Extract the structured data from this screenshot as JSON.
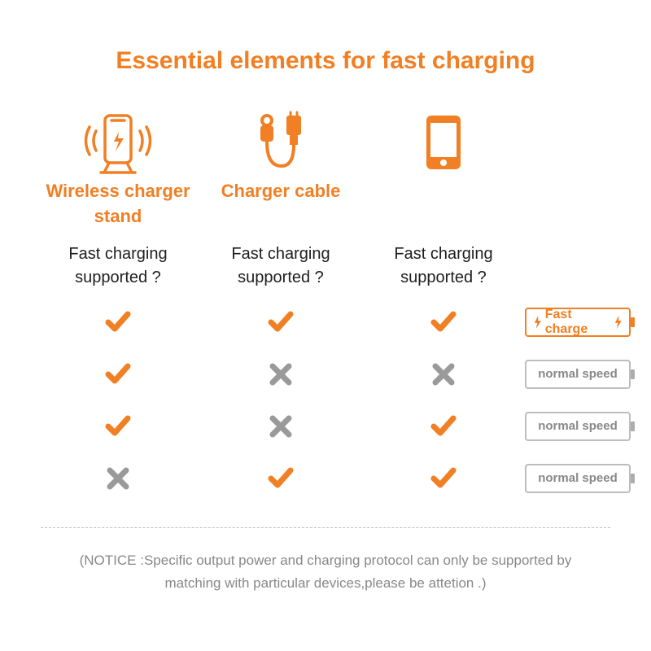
{
  "colors": {
    "accent": "#f17f23",
    "text": "#1e1e1e",
    "gray": "#9a9a9a",
    "badge_gray_border": "#bdbdbd",
    "badge_gray_text": "#888888",
    "notice": "#888888",
    "background": "#ffffff"
  },
  "title": "Essential elements for fast charging",
  "columns": [
    {
      "icon": "wireless-charger",
      "label": "Wireless charger stand",
      "question": "Fast charging supported ?"
    },
    {
      "icon": "charger-cable",
      "label": "Charger  cable",
      "question": "Fast charging supported ?"
    },
    {
      "icon": "phone",
      "label": "",
      "question": "Fast charging supported ?"
    }
  ],
  "rows": [
    {
      "cells": [
        "check",
        "check",
        "check"
      ],
      "badge": {
        "type": "fast",
        "label": "Fast charge"
      }
    },
    {
      "cells": [
        "check",
        "x",
        "x"
      ],
      "badge": {
        "type": "normal",
        "label": "normal speed"
      }
    },
    {
      "cells": [
        "check",
        "x",
        "check"
      ],
      "badge": {
        "type": "normal",
        "label": "normal speed"
      }
    },
    {
      "cells": [
        "x",
        "check",
        "check"
      ],
      "badge": {
        "type": "normal",
        "label": "normal speed"
      }
    }
  ],
  "notice_line1": "(NOTICE :Specific output power and charging protocol can only be supported by",
  "notice_line2": "matching with particular devices,please be attetion .)",
  "typography": {
    "title_fontsize": 30,
    "icon_label_fontsize": 22,
    "question_fontsize": 20,
    "badge_fontsize": 15,
    "notice_fontsize": 17
  }
}
